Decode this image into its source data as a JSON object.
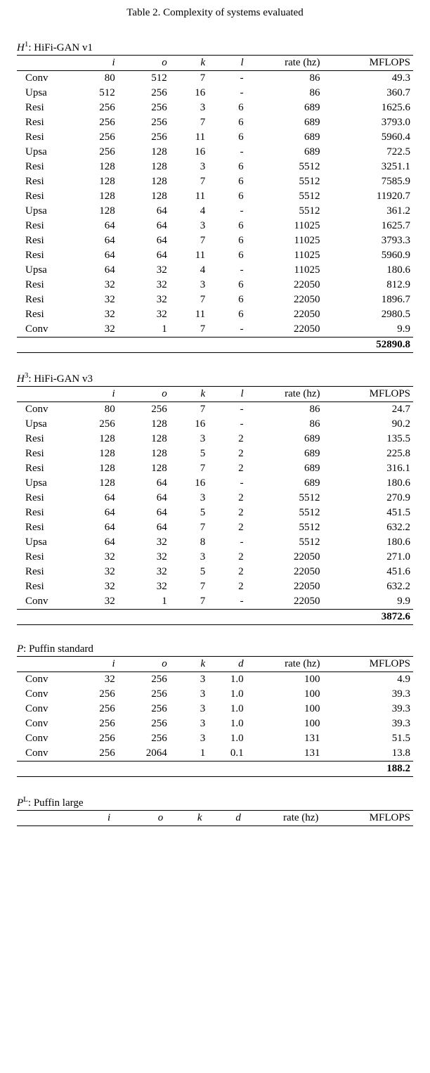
{
  "caption": "Table 2. Complexity of systems evaluated",
  "tables": [
    {
      "title_prefix": "H",
      "title_sup": "1",
      "title_rest": ": HiFi-GAN v1",
      "columns": [
        "",
        "i",
        "o",
        "k",
        "l",
        "rate (hz)",
        "MFLOPS"
      ],
      "rows": [
        [
          "Conv",
          "80",
          "512",
          "7",
          "-",
          "86",
          "49.3"
        ],
        [
          "Upsa",
          "512",
          "256",
          "16",
          "-",
          "86",
          "360.7"
        ],
        [
          "Resi",
          "256",
          "256",
          "3",
          "6",
          "689",
          "1625.6"
        ],
        [
          "Resi",
          "256",
          "256",
          "7",
          "6",
          "689",
          "3793.0"
        ],
        [
          "Resi",
          "256",
          "256",
          "11",
          "6",
          "689",
          "5960.4"
        ],
        [
          "Upsa",
          "256",
          "128",
          "16",
          "-",
          "689",
          "722.5"
        ],
        [
          "Resi",
          "128",
          "128",
          "3",
          "6",
          "5512",
          "3251.1"
        ],
        [
          "Resi",
          "128",
          "128",
          "7",
          "6",
          "5512",
          "7585.9"
        ],
        [
          "Resi",
          "128",
          "128",
          "11",
          "6",
          "5512",
          "11920.7"
        ],
        [
          "Upsa",
          "128",
          "64",
          "4",
          "-",
          "5512",
          "361.2"
        ],
        [
          "Resi",
          "64",
          "64",
          "3",
          "6",
          "11025",
          "1625.7"
        ],
        [
          "Resi",
          "64",
          "64",
          "7",
          "6",
          "11025",
          "3793.3"
        ],
        [
          "Resi",
          "64",
          "64",
          "11",
          "6",
          "11025",
          "5960.9"
        ],
        [
          "Upsa",
          "64",
          "32",
          "4",
          "-",
          "11025",
          "180.6"
        ],
        [
          "Resi",
          "32",
          "32",
          "3",
          "6",
          "22050",
          "812.9"
        ],
        [
          "Resi",
          "32",
          "32",
          "7",
          "6",
          "22050",
          "1896.7"
        ],
        [
          "Resi",
          "32",
          "32",
          "11",
          "6",
          "22050",
          "2980.5"
        ],
        [
          "Conv",
          "32",
          "1",
          "7",
          "-",
          "22050",
          "9.9"
        ]
      ],
      "total": "52890.8"
    },
    {
      "title_prefix": "H",
      "title_sup": "3",
      "title_rest": ": HiFi-GAN v3",
      "columns": [
        "",
        "i",
        "o",
        "k",
        "l",
        "rate (hz)",
        "MFLOPS"
      ],
      "rows": [
        [
          "Conv",
          "80",
          "256",
          "7",
          "-",
          "86",
          "24.7"
        ],
        [
          "Upsa",
          "256",
          "128",
          "16",
          "-",
          "86",
          "90.2"
        ],
        [
          "Resi",
          "128",
          "128",
          "3",
          "2",
          "689",
          "135.5"
        ],
        [
          "Resi",
          "128",
          "128",
          "5",
          "2",
          "689",
          "225.8"
        ],
        [
          "Resi",
          "128",
          "128",
          "7",
          "2",
          "689",
          "316.1"
        ],
        [
          "Upsa",
          "128",
          "64",
          "16",
          "-",
          "689",
          "180.6"
        ],
        [
          "Resi",
          "64",
          "64",
          "3",
          "2",
          "5512",
          "270.9"
        ],
        [
          "Resi",
          "64",
          "64",
          "5",
          "2",
          "5512",
          "451.5"
        ],
        [
          "Resi",
          "64",
          "64",
          "7",
          "2",
          "5512",
          "632.2"
        ],
        [
          "Upsa",
          "64",
          "32",
          "8",
          "-",
          "5512",
          "180.6"
        ],
        [
          "Resi",
          "32",
          "32",
          "3",
          "2",
          "22050",
          "271.0"
        ],
        [
          "Resi",
          "32",
          "32",
          "5",
          "2",
          "22050",
          "451.6"
        ],
        [
          "Resi",
          "32",
          "32",
          "7",
          "2",
          "22050",
          "632.2"
        ],
        [
          "Conv",
          "32",
          "1",
          "7",
          "-",
          "22050",
          "9.9"
        ]
      ],
      "total": "3872.6"
    },
    {
      "title_prefix": "P",
      "title_sup": "",
      "title_rest": ": Puffin standard",
      "columns": [
        "",
        "i",
        "o",
        "k",
        "d",
        "rate (hz)",
        "MFLOPS"
      ],
      "rows": [
        [
          "Conv",
          "32",
          "256",
          "3",
          "1.0",
          "100",
          "4.9"
        ],
        [
          "Conv",
          "256",
          "256",
          "3",
          "1.0",
          "100",
          "39.3"
        ],
        [
          "Conv",
          "256",
          "256",
          "3",
          "1.0",
          "100",
          "39.3"
        ],
        [
          "Conv",
          "256",
          "256",
          "3",
          "1.0",
          "100",
          "39.3"
        ],
        [
          "Conv",
          "256",
          "256",
          "3",
          "1.0",
          "131",
          "51.5"
        ],
        [
          "Conv",
          "256",
          "2064",
          "1",
          "0.1",
          "131",
          "13.8"
        ]
      ],
      "total": "188.2"
    },
    {
      "title_prefix": "P",
      "title_sup": "L",
      "title_rest": ": Puffin large",
      "columns": [
        "",
        "i",
        "o",
        "k",
        "d",
        "rate (hz)",
        "MFLOPS"
      ],
      "rows": [],
      "total": ""
    }
  ]
}
